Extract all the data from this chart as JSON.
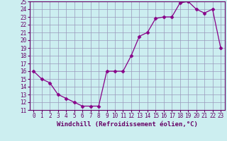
{
  "x": [
    0,
    1,
    2,
    3,
    4,
    5,
    6,
    7,
    8,
    9,
    10,
    11,
    12,
    13,
    14,
    15,
    16,
    17,
    18,
    19,
    20,
    21,
    22,
    23
  ],
  "y": [
    16,
    15,
    14.5,
    13,
    12.5,
    12,
    11.5,
    11.5,
    11.5,
    16,
    16,
    16,
    18,
    20.5,
    21,
    22.8,
    23,
    23,
    24.8,
    25,
    24,
    23.5,
    24,
    19
  ],
  "xlabel": "Windchill (Refroidissement éolien,°C)",
  "ylim": [
    11,
    25
  ],
  "xlim": [
    -0.5,
    23.5
  ],
  "yticks": [
    11,
    12,
    13,
    14,
    15,
    16,
    17,
    18,
    19,
    20,
    21,
    22,
    23,
    24,
    25
  ],
  "xticks": [
    0,
    1,
    2,
    3,
    4,
    5,
    6,
    7,
    8,
    9,
    10,
    11,
    12,
    13,
    14,
    15,
    16,
    17,
    18,
    19,
    20,
    21,
    22,
    23
  ],
  "line_color": "#880088",
  "marker": "D",
  "marker_size": 2.5,
  "bg_color": "#cceef0",
  "grid_color": "#9999bb",
  "axis_color": "#660066",
  "font_color": "#660066",
  "font_size": 5.5,
  "xlabel_fontsize": 6.5
}
